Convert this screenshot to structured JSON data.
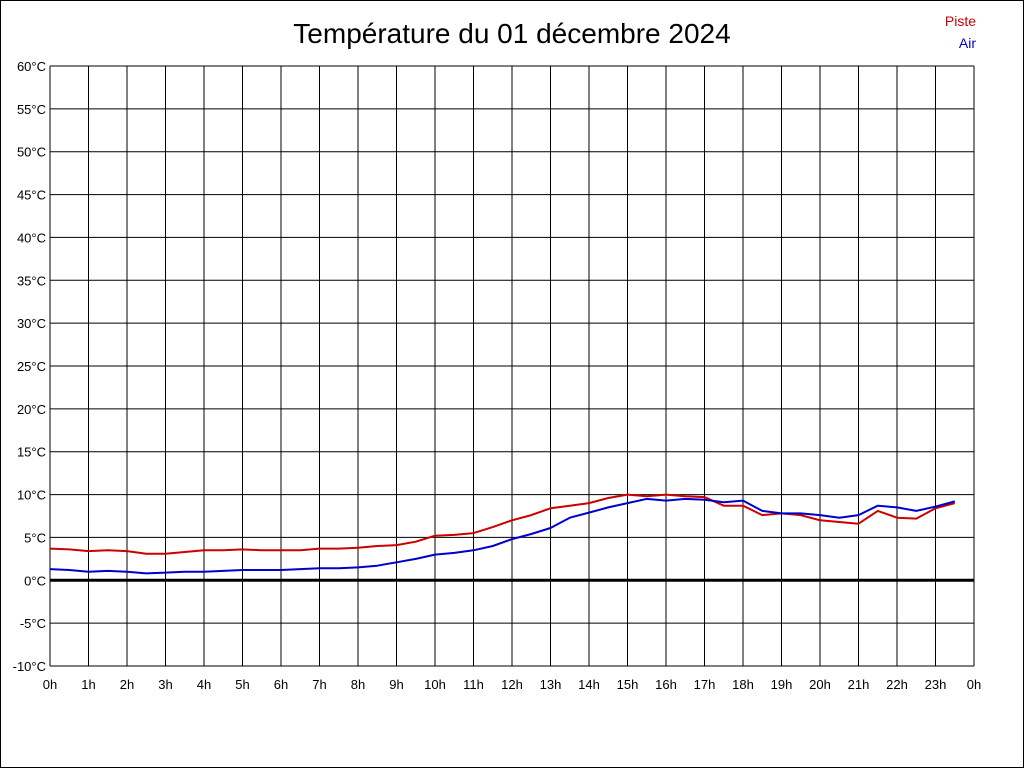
{
  "chart_data": {
    "type": "line",
    "title": "Température du 01 décembre 2024",
    "xlabel": "",
    "ylabel": "",
    "x_tick_labels": [
      "0h",
      "1h",
      "2h",
      "3h",
      "4h",
      "5h",
      "6h",
      "7h",
      "8h",
      "9h",
      "10h",
      "11h",
      "12h",
      "13h",
      "14h",
      "15h",
      "16h",
      "17h",
      "18h",
      "19h",
      "20h",
      "21h",
      "22h",
      "23h",
      "0h"
    ],
    "y_tick_labels": [
      "60°C",
      "55°C",
      "50°C",
      "45°C",
      "40°C",
      "35°C",
      "30°C",
      "25°C",
      "20°C",
      "15°C",
      "10°C",
      "5°C",
      "0°C",
      "-5°C",
      "-10°C"
    ],
    "xlim": [
      0,
      24
    ],
    "ylim": [
      -10,
      60
    ],
    "grid": true,
    "legend_position": "top-right",
    "zero_line": true,
    "series": [
      {
        "name": "Piste",
        "color": "#cc0000",
        "x": [
          0,
          0.5,
          1,
          1.5,
          2,
          2.5,
          3,
          3.5,
          4,
          4.5,
          5,
          5.5,
          6,
          6.5,
          7,
          7.5,
          8,
          8.5,
          9,
          9.5,
          10,
          10.5,
          11,
          11.5,
          12,
          12.5,
          13,
          13.5,
          14,
          14.5,
          15,
          15.5,
          16,
          16.5,
          17,
          17.5,
          18,
          18.5,
          19,
          19.5,
          20,
          20.5,
          21,
          21.5,
          22,
          22.5,
          23,
          23.5
        ],
        "values": [
          3.7,
          3.6,
          3.4,
          3.5,
          3.4,
          3.1,
          3.1,
          3.3,
          3.5,
          3.5,
          3.6,
          3.5,
          3.5,
          3.5,
          3.7,
          3.7,
          3.8,
          4.0,
          4.1,
          4.5,
          5.2,
          5.3,
          5.5,
          6.2,
          7.0,
          7.6,
          8.4,
          8.7,
          9.0,
          9.6,
          10.0,
          9.8,
          10.0,
          9.8,
          9.7,
          8.7,
          8.7,
          7.6,
          7.8,
          7.6,
          7.0,
          6.8,
          6.6,
          8.1,
          7.3,
          7.2,
          8.4,
          9.0
        ]
      },
      {
        "name": "Air",
        "color": "#0000cc",
        "x": [
          0,
          0.5,
          1,
          1.5,
          2,
          2.5,
          3,
          3.5,
          4,
          4.5,
          5,
          5.5,
          6,
          6.5,
          7,
          7.5,
          8,
          8.5,
          9,
          9.5,
          10,
          10.5,
          11,
          11.5,
          12,
          12.5,
          13,
          13.5,
          14,
          14.5,
          15,
          15.5,
          16,
          16.5,
          17,
          17.5,
          18,
          18.5,
          19,
          19.5,
          20,
          20.5,
          21,
          21.5,
          22,
          22.5,
          23,
          23.5
        ],
        "values": [
          1.3,
          1.2,
          1.0,
          1.1,
          1.0,
          0.8,
          0.9,
          1.0,
          1.0,
          1.1,
          1.2,
          1.2,
          1.2,
          1.3,
          1.4,
          1.4,
          1.5,
          1.7,
          2.1,
          2.5,
          3.0,
          3.2,
          3.5,
          4.0,
          4.8,
          5.4,
          6.1,
          7.3,
          7.9,
          8.5,
          9.0,
          9.5,
          9.3,
          9.5,
          9.4,
          9.1,
          9.3,
          8.1,
          7.8,
          7.8,
          7.6,
          7.3,
          7.6,
          8.7,
          8.5,
          8.1,
          8.6,
          9.2
        ]
      }
    ]
  }
}
